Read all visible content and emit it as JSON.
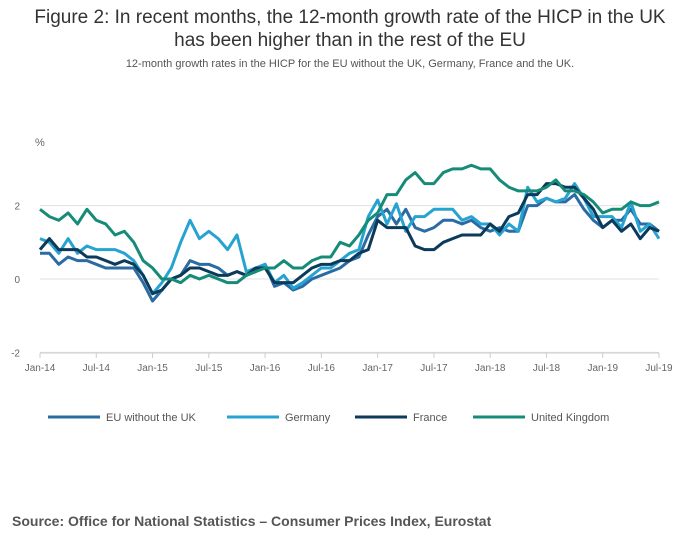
{
  "title_line1": "Figure 2: In recent months, the 12-month growth rate of the HICP in the UK",
  "title_line2": "has been higher than in the rest of the EU",
  "subtitle": "12-month growth rates in the HICP for the EU without the UK, Germany, France and the UK.",
  "source": "Source: Office for National Statistics – Consumer Prices Index, Eurostat",
  "chart_data": {
    "type": "line",
    "ylabel": "%",
    "ylim": [
      -2,
      3.5
    ],
    "yticks": [
      -2,
      0,
      2
    ],
    "grid": true,
    "legend": "bottom",
    "x_start": "Jan-14",
    "x_end": "Jul-19",
    "xtick_labels": [
      "Jan-14",
      "Jul-14",
      "Jan-15",
      "Jul-15",
      "Jan-16",
      "Jul-16",
      "Jan-17",
      "Jul-17",
      "Jan-18",
      "Jul-18",
      "Jan-19",
      "Jul-19"
    ],
    "series": [
      {
        "name": "EU without the UK",
        "color": "#2a6ba3",
        "values": [
          0.7,
          0.7,
          0.4,
          0.6,
          0.5,
          0.5,
          0.4,
          0.3,
          0.3,
          0.3,
          0.3,
          -0.1,
          -0.6,
          -0.3,
          0.0,
          0.1,
          0.5,
          0.4,
          0.4,
          0.3,
          0.1,
          0.2,
          0.1,
          0.2,
          0.4,
          -0.2,
          -0.1,
          -0.3,
          -0.2,
          0.0,
          0.1,
          0.2,
          0.3,
          0.5,
          0.6,
          1.2,
          1.7,
          1.9,
          1.5,
          1.9,
          1.4,
          1.3,
          1.4,
          1.6,
          1.6,
          1.5,
          1.6,
          1.4,
          1.3,
          1.4,
          1.3,
          1.3,
          2.0,
          2.0,
          2.2,
          2.1,
          2.1,
          2.3,
          1.9,
          1.6,
          1.4,
          1.6,
          1.6,
          1.9,
          1.5,
          1.5,
          1.3
        ]
      },
      {
        "name": "Germany",
        "color": "#27a3d1",
        "values": [
          1.1,
          1.0,
          0.7,
          1.1,
          0.7,
          0.9,
          0.8,
          0.8,
          0.8,
          0.7,
          0.5,
          0.1,
          -0.4,
          -0.1,
          0.3,
          1.0,
          1.6,
          1.1,
          1.3,
          1.1,
          0.8,
          1.2,
          0.2,
          0.3,
          0.4,
          -0.1,
          0.1,
          -0.25,
          -0.1,
          0.1,
          0.3,
          0.3,
          0.5,
          0.7,
          0.8,
          1.7,
          2.15,
          1.5,
          2.05,
          1.3,
          1.7,
          1.7,
          1.9,
          1.9,
          1.9,
          1.6,
          1.7,
          1.5,
          1.5,
          1.2,
          1.5,
          1.3,
          2.5,
          2.1,
          2.2,
          2.1,
          2.2,
          2.6,
          2.2,
          1.7,
          1.7,
          1.7,
          1.4,
          2.1,
          1.3,
          1.5,
          1.1
        ]
      },
      {
        "name": "France",
        "color": "#0b3a5a",
        "values": [
          0.8,
          1.1,
          0.8,
          0.8,
          0.8,
          0.6,
          0.6,
          0.5,
          0.4,
          0.5,
          0.4,
          0.1,
          -0.4,
          -0.3,
          0.0,
          0.1,
          0.3,
          0.3,
          0.2,
          0.1,
          0.1,
          0.2,
          0.1,
          0.3,
          0.3,
          -0.1,
          -0.1,
          -0.1,
          0.1,
          0.3,
          0.4,
          0.4,
          0.5,
          0.5,
          0.7,
          0.8,
          1.6,
          1.4,
          1.4,
          1.4,
          0.9,
          0.8,
          0.8,
          1.0,
          1.1,
          1.2,
          1.2,
          1.2,
          1.5,
          1.3,
          1.7,
          1.8,
          2.3,
          2.3,
          2.6,
          2.6,
          2.5,
          2.5,
          2.2,
          1.9,
          1.4,
          1.6,
          1.3,
          1.5,
          1.1,
          1.4,
          1.3
        ]
      },
      {
        "name": "United Kingdom",
        "color": "#168c78",
        "values": [
          1.9,
          1.7,
          1.6,
          1.8,
          1.5,
          1.9,
          1.6,
          1.5,
          1.2,
          1.3,
          1.0,
          0.5,
          0.3,
          0.0,
          0.0,
          -0.1,
          0.1,
          0.0,
          0.1,
          0.0,
          -0.1,
          -0.1,
          0.1,
          0.2,
          0.3,
          0.3,
          0.5,
          0.3,
          0.3,
          0.5,
          0.6,
          0.6,
          1.0,
          0.9,
          1.2,
          1.6,
          1.8,
          2.3,
          2.3,
          2.7,
          2.9,
          2.6,
          2.6,
          2.9,
          3.0,
          3.0,
          3.1,
          3.0,
          3.0,
          2.7,
          2.5,
          2.4,
          2.4,
          2.4,
          2.5,
          2.7,
          2.4,
          2.4,
          2.3,
          2.1,
          1.8,
          1.9,
          1.9,
          2.1,
          2.0,
          2.0,
          2.1
        ]
      }
    ]
  }
}
